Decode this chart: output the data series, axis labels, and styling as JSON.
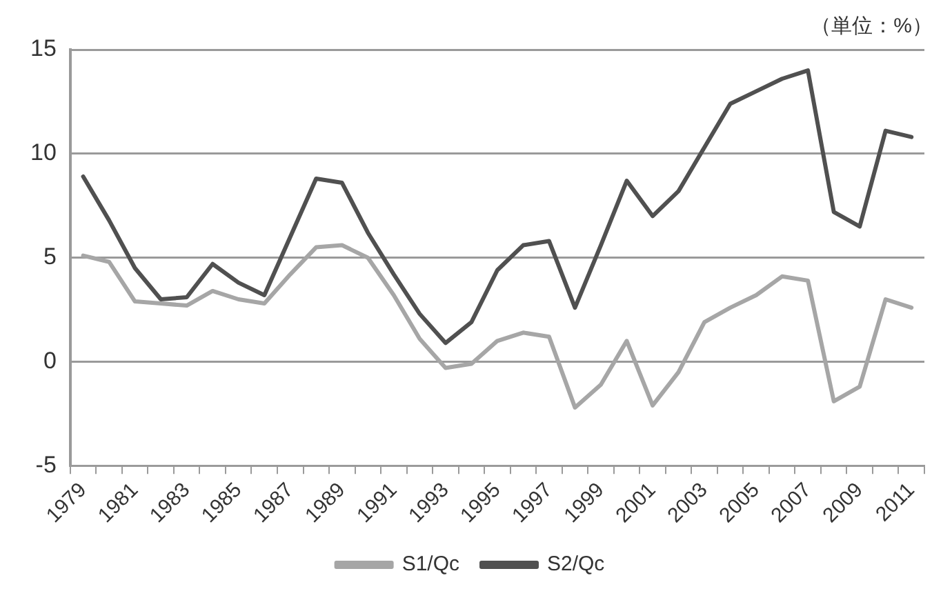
{
  "chart_data": {
    "type": "line",
    "annotations": [
      "（単位：%）"
    ],
    "categories": [
      "1979",
      null,
      "1981",
      null,
      "1983",
      null,
      "1985",
      null,
      "1987",
      null,
      "1989",
      null,
      "1991",
      null,
      "1993",
      null,
      "1995",
      null,
      "1997",
      null,
      "1999",
      null,
      "2001",
      null,
      "2003",
      null,
      "2005",
      null,
      "2007",
      null,
      "2009",
      null,
      "2011"
    ],
    "series": [
      {
        "name": "S1/Qc",
        "color": "#a6a6a6",
        "values": [
          5.1,
          4.8,
          2.9,
          2.8,
          2.7,
          3.4,
          3.0,
          2.8,
          4.2,
          5.5,
          5.6,
          5.0,
          3.2,
          1.1,
          -0.3,
          -0.1,
          1.0,
          1.4,
          1.2,
          -2.2,
          -1.1,
          1.0,
          -2.1,
          -0.5,
          1.9,
          2.6,
          3.2,
          4.1,
          3.9,
          -1.9,
          -1.2,
          3.0,
          2.6
        ]
      },
      {
        "name": "S2/Qc",
        "color": "#505050",
        "values": [
          8.9,
          6.8,
          4.5,
          3.0,
          3.1,
          4.7,
          3.8,
          3.2,
          6.0,
          8.8,
          8.6,
          6.2,
          4.2,
          2.3,
          0.9,
          1.9,
          4.4,
          5.6,
          5.8,
          2.6,
          5.6,
          8.7,
          7.0,
          8.2,
          10.3,
          12.4,
          13.0,
          13.6,
          14.0,
          7.2,
          6.5,
          11.1,
          10.8
        ]
      }
    ],
    "ylim": [
      -5,
      15
    ],
    "yticks": [
      -5,
      0,
      5,
      10,
      15
    ],
    "grid": "y",
    "legend": "bottom",
    "marker": "none",
    "line_style": "solid"
  }
}
